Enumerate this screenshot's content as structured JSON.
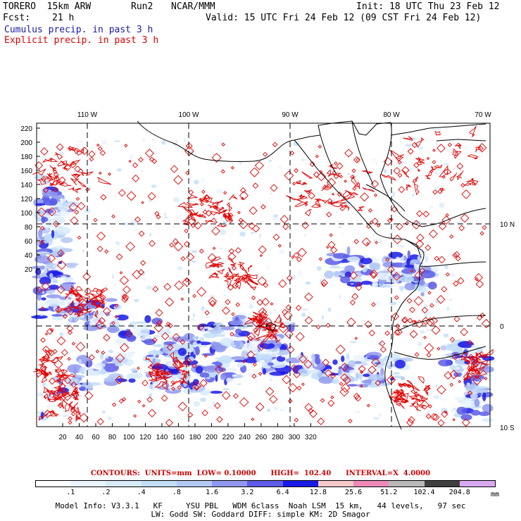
{
  "header": {
    "model": "TORERO  15km ARW",
    "run": "Run2",
    "org": "NCAR/MMM",
    "init": "Init: 18 UTC Thu 23 Feb 12",
    "fcst_label": "Fcst:",
    "fcst_value": "21 h",
    "valid": "Valid: 15 UTC Fri 24 Feb 12 (09 CST Fri 24 Feb 12)",
    "cumulus": "Cumulus precip. in past 3 h",
    "explicit": "Explicit precip. in past 3 h"
  },
  "colors": {
    "cumulus_text": "#1a1aa6",
    "explicit_text": "#e00000",
    "contour": "#e00000",
    "coast": "#000000"
  },
  "lon_labels": [
    "110 W",
    "100 W",
    "90 W",
    "80 W",
    "70 W"
  ],
  "lat_labels": [
    "10 N",
    "0",
    "10 S"
  ],
  "y_ticks": [
    "220",
    "200",
    "180",
    "160",
    "140",
    "120",
    "100",
    "80",
    "60",
    "40",
    "20"
  ],
  "x_ticks": [
    "20",
    "40",
    "60",
    "80",
    "100",
    "120",
    "140",
    "160",
    "180",
    "200",
    "220",
    "240",
    "260",
    "280",
    "300",
    "320"
  ],
  "contour_info": {
    "label": "CONTOURS:",
    "units": "UNITS=mm",
    "low": "LOW= 0.10000",
    "high": "HIGH=  102.40",
    "interval": "INTERVAL=X  4.0000"
  },
  "colorbar": {
    "unit": "mm",
    "labels": [
      ".1",
      ".2",
      ".4",
      ".8",
      "1.6",
      "3.2",
      "6.4",
      "12.8",
      "25.6",
      "51.2",
      "102.4",
      "204.8"
    ],
    "colors": [
      "#ffffff",
      "#eaf4ff",
      "#d8ebfb",
      "#c2def8",
      "#b4c8f4",
      "#8f98ee",
      "#5c5ce6",
      "#1a1ae6",
      "#f8c8c8",
      "#ee88b8",
      "#b8b8b8",
      "#404040",
      "#d8a8f0"
    ]
  },
  "model_info": {
    "line1": "Model Info: V3.3.1   KF     YSU PBL   WDM 6class  Noah LSM  15 km,   44 levels,   97 sec",
    "line2": "LW: Godd SW: Goddard DIFF: simple KM: 2D Smagor"
  }
}
